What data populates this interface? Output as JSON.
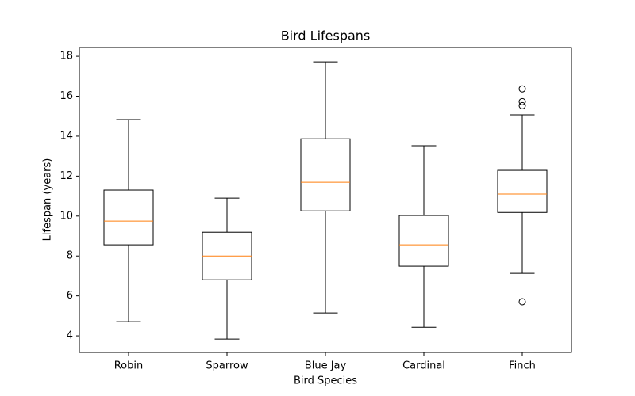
{
  "chart_data": {
    "type": "box",
    "title": "Bird Lifespans",
    "x_label": "Bird Species",
    "y_label": "Lifespan (years)",
    "categories": [
      "Robin",
      "Sparrow",
      "Blue Jay",
      "Cardinal",
      "Finch"
    ],
    "whisker_low": [
      4.71,
      3.84,
      5.15,
      4.43,
      7.13
    ],
    "q1": [
      8.56,
      6.81,
      10.26,
      7.49,
      10.18
    ],
    "median": [
      9.75,
      8.0,
      11.69,
      8.56,
      11.1
    ],
    "q3": [
      11.3,
      9.19,
      13.87,
      10.03,
      12.29
    ],
    "whisker_high": [
      14.83,
      10.9,
      17.72,
      13.52,
      15.07
    ],
    "outliers": [
      [],
      [],
      [],
      [],
      [
        16.37,
        15.73,
        15.53,
        5.71
      ]
    ],
    "box_color": "#000000",
    "median_color": "#ff7f0e",
    "ylim": [
      3.17,
      18.44
    ],
    "yticks": [
      4,
      6,
      8,
      10,
      12,
      14,
      16,
      18
    ]
  }
}
